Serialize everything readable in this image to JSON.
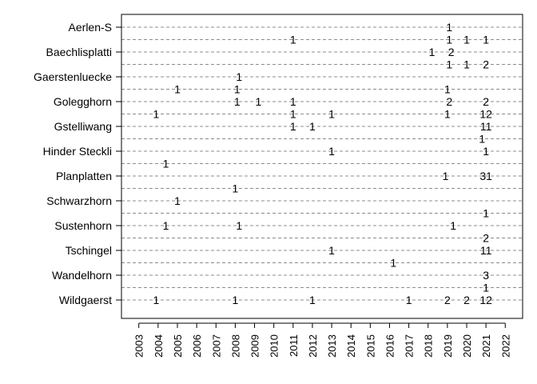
{
  "chart_data": {
    "type": "scatter",
    "title": "",
    "xlabel": "",
    "ylabel": "",
    "xlim": [
      2002.1,
      2022.9
    ],
    "x_ticks": [
      2003,
      2004,
      2005,
      2006,
      2007,
      2008,
      2009,
      2010,
      2011,
      2012,
      2013,
      2014,
      2015,
      2016,
      2017,
      2018,
      2019,
      2020,
      2021,
      2022
    ],
    "x_tick_labels": [
      "2003",
      "2004",
      "2005",
      "2006",
      "2007",
      "2008",
      "2009",
      "2010",
      "2011",
      "2012",
      "2013",
      "2014",
      "2015",
      "2016",
      "2017",
      "2018",
      "2019",
      "2020",
      "2021",
      "2022"
    ],
    "grid": "horizontal dashed lines",
    "rows": [
      {
        "label": "Aerlen-S",
        "points": [
          {
            "x": 2019.1,
            "text": "1"
          }
        ]
      },
      {
        "label": "",
        "points": [
          {
            "x": 2011.0,
            "text": "1"
          },
          {
            "x": 2019.1,
            "text": "1"
          },
          {
            "x": 2020.0,
            "text": "1"
          },
          {
            "x": 2021.0,
            "text": "1"
          }
        ]
      },
      {
        "label": "Baechlisplatti",
        "points": [
          {
            "x": 2018.2,
            "text": "1"
          },
          {
            "x": 2019.2,
            "text": "2"
          }
        ]
      },
      {
        "label": "",
        "points": [
          {
            "x": 2019.1,
            "text": "1"
          },
          {
            "x": 2020.0,
            "text": "1"
          },
          {
            "x": 2021.0,
            "text": "2"
          }
        ]
      },
      {
        "label": "Gaerstenluecke",
        "points": [
          {
            "x": 2008.2,
            "text": "1"
          }
        ]
      },
      {
        "label": "",
        "points": [
          {
            "x": 2005.0,
            "text": "1"
          },
          {
            "x": 2008.1,
            "text": "1"
          },
          {
            "x": 2019.0,
            "text": "1"
          }
        ]
      },
      {
        "label": "Golegghorn",
        "points": [
          {
            "x": 2008.1,
            "text": "1"
          },
          {
            "x": 2009.2,
            "text": "1"
          },
          {
            "x": 2011.0,
            "text": "1"
          },
          {
            "x": 2019.1,
            "text": "2"
          },
          {
            "x": 2021.0,
            "text": "2"
          }
        ]
      },
      {
        "label": "",
        "points": [
          {
            "x": 2003.9,
            "text": "1"
          },
          {
            "x": 2011.0,
            "text": "1"
          },
          {
            "x": 2013.0,
            "text": "1"
          },
          {
            "x": 2019.0,
            "text": "1"
          },
          {
            "x": 2021.0,
            "text": "12"
          }
        ]
      },
      {
        "label": "Gstelliwang",
        "points": [
          {
            "x": 2011.0,
            "text": "1"
          },
          {
            "x": 2012.0,
            "text": "1"
          },
          {
            "x": 2021.0,
            "text": "11"
          }
        ]
      },
      {
        "label": "",
        "points": [
          {
            "x": 2020.8,
            "text": "1"
          }
        ]
      },
      {
        "label": "Hinder Steckli",
        "points": [
          {
            "x": 2013.0,
            "text": "1"
          },
          {
            "x": 2021.0,
            "text": "1"
          }
        ]
      },
      {
        "label": "",
        "points": [
          {
            "x": 2004.4,
            "text": "1"
          }
        ]
      },
      {
        "label": "Planplatten",
        "points": [
          {
            "x": 2018.9,
            "text": "1"
          },
          {
            "x": 2021.0,
            "text": "31"
          }
        ]
      },
      {
        "label": "",
        "points": [
          {
            "x": 2008.0,
            "text": "1"
          }
        ]
      },
      {
        "label": "Schwarzhorn",
        "points": [
          {
            "x": 2005.0,
            "text": "1"
          }
        ]
      },
      {
        "label": "",
        "points": [
          {
            "x": 2021.0,
            "text": "1"
          }
        ]
      },
      {
        "label": "Sustenhorn",
        "points": [
          {
            "x": 2004.4,
            "text": "1"
          },
          {
            "x": 2008.2,
            "text": "1"
          },
          {
            "x": 2019.3,
            "text": "1"
          }
        ]
      },
      {
        "label": "",
        "points": [
          {
            "x": 2021.0,
            "text": "2"
          }
        ]
      },
      {
        "label": "Tschingel",
        "points": [
          {
            "x": 2013.0,
            "text": "1"
          },
          {
            "x": 2021.0,
            "text": "11"
          }
        ]
      },
      {
        "label": "",
        "points": [
          {
            "x": 2016.2,
            "text": "1"
          }
        ]
      },
      {
        "label": "Wandelhorn",
        "points": [
          {
            "x": 2021.0,
            "text": "3"
          }
        ]
      },
      {
        "label": "",
        "points": [
          {
            "x": 2021.0,
            "text": "1"
          }
        ]
      },
      {
        "label": "Wildgaerst",
        "points": [
          {
            "x": 2003.9,
            "text": "1"
          },
          {
            "x": 2008.0,
            "text": "1"
          },
          {
            "x": 2012.0,
            "text": "1"
          },
          {
            "x": 2017.0,
            "text": "1"
          },
          {
            "x": 2019.0,
            "text": "2"
          },
          {
            "x": 2020.0,
            "text": "2"
          },
          {
            "x": 2021.0,
            "text": "12"
          }
        ]
      }
    ]
  }
}
